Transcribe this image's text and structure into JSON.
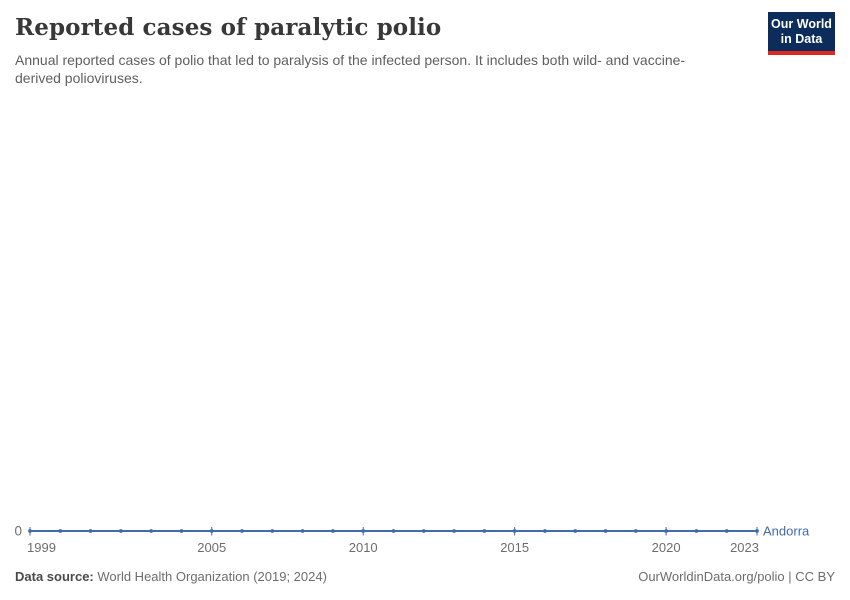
{
  "header": {
    "title": "Reported cases of paralytic polio",
    "subtitle": "Annual reported cases of polio that led to paralysis of the infected person. It includes both wild- and vaccine-derived polioviruses."
  },
  "logo": {
    "line1": "Our World",
    "line2": "in Data",
    "bg_color": "#0c2d5b",
    "accent_color": "#e02721"
  },
  "chart_data": {
    "type": "line",
    "title": "Reported cases of paralytic polio",
    "xlabel": "",
    "ylabel": "",
    "x": [
      1999,
      2000,
      2001,
      2002,
      2003,
      2004,
      2005,
      2006,
      2007,
      2008,
      2009,
      2010,
      2011,
      2012,
      2013,
      2014,
      2015,
      2016,
      2017,
      2018,
      2019,
      2020,
      2021,
      2022,
      2023
    ],
    "series": [
      {
        "name": "Andorra",
        "color": "#426aad",
        "values": [
          0,
          0,
          0,
          0,
          0,
          0,
          0,
          0,
          0,
          0,
          0,
          0,
          0,
          0,
          0,
          0,
          0,
          0,
          0,
          0,
          0,
          0,
          0,
          0,
          0
        ]
      }
    ],
    "x_ticks": [
      1999,
      2005,
      2010,
      2015,
      2020,
      2023
    ],
    "y_ticks": [
      0
    ],
    "xlim": [
      1999,
      2023
    ],
    "ylim": [
      0,
      1
    ],
    "grid": false,
    "legend_position": "end-of-line-label",
    "axis_text_color": "#6d6d6d"
  },
  "footer": {
    "datasource_label": "Data source:",
    "datasource_value": " World Health Organization (2019; 2024)",
    "attribution": "OurWorldinData.org/polio | CC BY"
  }
}
